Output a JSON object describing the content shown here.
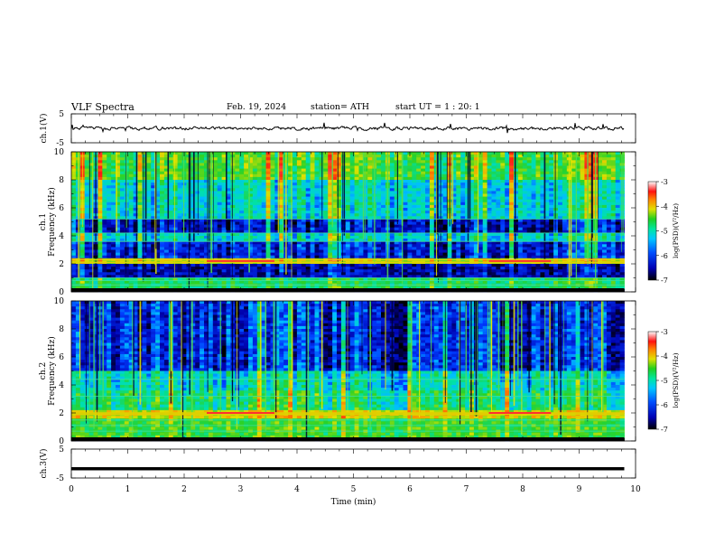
{
  "header": {
    "title": "VLF  Spectra",
    "date": "Feb. 19, 2024",
    "station": "station= ATH",
    "start_ut": "start  UT  =    1  : 20: 1"
  },
  "chart_data": [
    {
      "type": "line",
      "panel": "ch1-waveform",
      "ylabel": "ch.1(V)",
      "ylim": [
        -5,
        5
      ],
      "yticks": [
        5,
        -5
      ],
      "xlim": [
        0,
        10
      ],
      "note_series": "waveform near 0 V with small spiky fluctuations, ends at ~9.8 min"
    },
    {
      "type": "heatmap",
      "panel": "ch1-spectrogram",
      "ylabel": "ch.1\nFrequency  (kHz)",
      "ylim": [
        0,
        10
      ],
      "yticks": [
        0,
        2,
        4,
        6,
        8,
        10
      ],
      "xlim": [
        0,
        10
      ],
      "data_end_min": 9.8,
      "bands": [
        {
          "from": 0,
          "to": 0.3,
          "level": -7
        },
        {
          "from": 0.3,
          "to": 1.0,
          "level": -5.2
        },
        {
          "from": 1.0,
          "to": 2.0,
          "level": -6.6
        },
        {
          "from": 2.0,
          "to": 2.4,
          "level": -4.6
        },
        {
          "from": 2.4,
          "to": 3.6,
          "level": -6.4
        },
        {
          "from": 3.6,
          "to": 4.2,
          "level": -5.6
        },
        {
          "from": 4.2,
          "to": 5.2,
          "level": -6.5
        },
        {
          "from": 5.2,
          "to": 8.0,
          "level": -5.6
        },
        {
          "from": 8.0,
          "to": 10.0,
          "level": -5.0
        }
      ],
      "colorbar": {
        "label": "log(PSD)(V²/Hz)",
        "min": -7,
        "max": -3,
        "ticks": [
          -3,
          -4,
          -5,
          -6,
          -7
        ]
      }
    },
    {
      "type": "heatmap",
      "panel": "ch2-spectrogram",
      "ylabel": "ch.2\nFrequency  (kHz)",
      "ylim": [
        0,
        10
      ],
      "yticks": [
        0,
        2,
        4,
        6,
        8,
        10
      ],
      "xlim": [
        0,
        10
      ],
      "data_end_min": 9.8,
      "bands": [
        {
          "from": 0,
          "to": 0.2,
          "level": -7
        },
        {
          "from": 0.2,
          "to": 1.6,
          "level": -5.0
        },
        {
          "from": 1.6,
          "to": 2.3,
          "level": -4.5
        },
        {
          "from": 2.3,
          "to": 3.6,
          "level": -5.3
        },
        {
          "from": 3.6,
          "to": 5.0,
          "level": -5.6
        },
        {
          "from": 5.0,
          "to": 10.0,
          "level": -6.4
        }
      ],
      "colorbar": {
        "label": "log(PSD)(V²/Hz)",
        "min": -7,
        "max": -3,
        "ticks": [
          -3,
          -4,
          -5,
          -6,
          -7
        ]
      }
    },
    {
      "type": "line",
      "panel": "ch3-waveform",
      "ylabel": "ch.3(V)",
      "ylim": [
        -5,
        5
      ],
      "yticks": [
        5,
        -5
      ],
      "xlim": [
        0,
        10
      ],
      "level_v": -1.8,
      "xlabel": "Time  (min)",
      "xticks": [
        0,
        1,
        2,
        3,
        4,
        5,
        6,
        7,
        8,
        9,
        10
      ]
    }
  ]
}
